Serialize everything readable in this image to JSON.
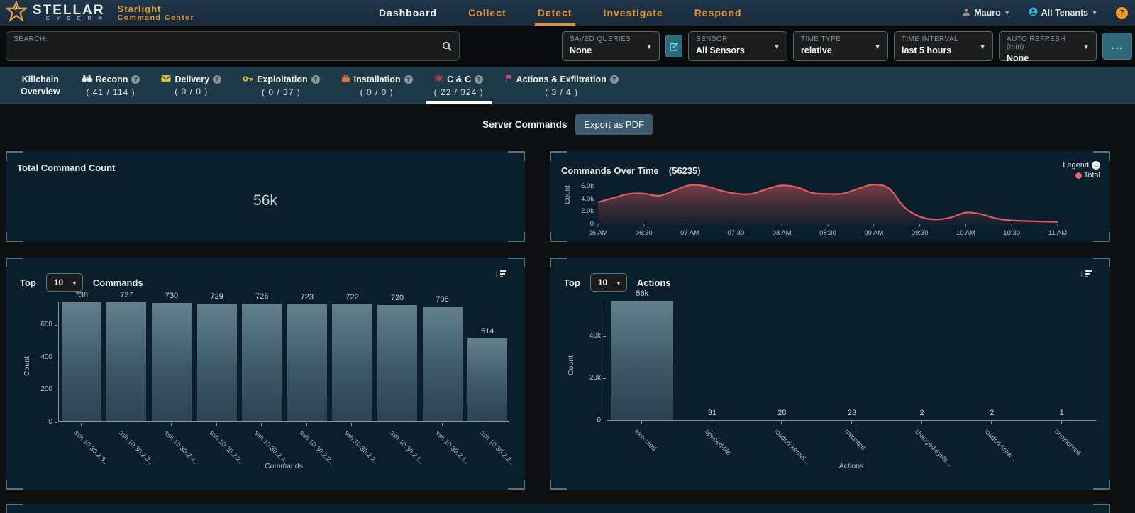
{
  "header": {
    "logo": {
      "brand": "STELLAR",
      "sub": "C Y B E R ®",
      "product_line1": "Starlight",
      "product_line2": "Command Center"
    },
    "nav": [
      {
        "label": "Dashboard",
        "style": "white"
      },
      {
        "label": "Collect"
      },
      {
        "label": "Detect",
        "active": true
      },
      {
        "label": "Investigate"
      },
      {
        "label": "Respond"
      }
    ],
    "user_label": "Mauro",
    "tenant_label": "All Tenants",
    "help_label": "?"
  },
  "filters": {
    "search_label": "SEARCH:",
    "dropdowns": [
      {
        "label": "SAVED QUERIES",
        "value": "None"
      },
      {
        "label": "SENSOR",
        "value": "All Sensors"
      },
      {
        "label": "TIME TYPE",
        "value": "relative"
      },
      {
        "label": "TIME INTERVAL",
        "value": "last 5 hours"
      },
      {
        "label": "AUTO REFRESH (min)",
        "value": "None"
      }
    ],
    "more_label": "..."
  },
  "killchain": {
    "tabs": [
      {
        "label": "Killchain",
        "label2": "Overview"
      },
      {
        "label": "Reconn",
        "count": "( 41 / 114 )",
        "icon": "binoculars-icon",
        "help": true
      },
      {
        "label": "Delivery",
        "count": "( 0 / 0 )",
        "icon": "envelope-icon",
        "help": true
      },
      {
        "label": "Exploitation",
        "count": "( 0 / 37 )",
        "icon": "key-icon",
        "help": true
      },
      {
        "label": "Installation",
        "count": "( 0 / 0 )",
        "icon": "toolbox-icon",
        "help": true
      },
      {
        "label": "C & C",
        "count": "( 22 / 324 )",
        "icon": "spider-icon",
        "help": true,
        "active": true
      },
      {
        "label": "Actions & Exfiltration",
        "count": "( 3 / 4 )",
        "icon": "flag-icon",
        "help": true
      }
    ]
  },
  "toolbar": {
    "title": "Server Commands",
    "export_label": "Export as PDF"
  },
  "panels": {
    "total": {
      "title": "Total Command Count",
      "value": "56k"
    },
    "over_time": {
      "title": "Commands Over Time",
      "count": "(56235)",
      "legend_label": "Legend",
      "legend_series": "Total",
      "ylabel": "Count"
    },
    "top_commands": {
      "top_label": "Top",
      "top_value": "10",
      "title": "Commands"
    },
    "top_actions": {
      "top_label": "Top",
      "top_value": "10",
      "title": "Actions"
    }
  },
  "chart_data": [
    {
      "id": "commands_over_time",
      "type": "area",
      "title": "Commands Over Time",
      "total": 56235,
      "series": [
        {
          "name": "Total",
          "color": "#e25b64",
          "values": [
            3400,
            4100,
            4750,
            4800,
            4450,
            5300,
            6150,
            6000,
            5300,
            4800,
            4750,
            5500,
            6100,
            5800,
            4900,
            4750,
            4800,
            5600,
            6250,
            5600,
            2600,
            1100,
            650,
            950,
            1750,
            1500,
            800,
            500,
            400,
            320,
            260
          ]
        }
      ],
      "x_ticks": [
        "06 AM",
        "06:30",
        "07 AM",
        "07:30",
        "08 AM",
        "08:30",
        "09 AM",
        "09:30",
        "10 AM",
        "10:30",
        "11 AM"
      ],
      "y_ticks": [
        {
          "value": 0,
          "label": "0"
        },
        {
          "value": 2000,
          "label": "2.0k"
        },
        {
          "value": 4000,
          "label": "4.0k"
        },
        {
          "value": 6000,
          "label": "6.0k"
        }
      ],
      "ylim": [
        0,
        6600
      ],
      "xlabel": "",
      "ylabel": "Count",
      "grid": false,
      "legend_position": "top-right"
    },
    {
      "id": "top_commands",
      "type": "bar",
      "categories": [
        "ssh 10.30.2.3...",
        "ssh 10.30.2.3...",
        "ssh 10.30.2.4...",
        "ssh 10.30.2.2...",
        "ssh 10.30.2.4...",
        "ssh 10.30.2.2...",
        "ssh 10.30.2.2...",
        "ssh 10.30.2.1...",
        "ssh 10.30.2.1...",
        "ssh 10.30.2.2..."
      ],
      "values": [
        738,
        737,
        730,
        729,
        728,
        723,
        722,
        720,
        708,
        514
      ],
      "value_labels": [
        "738",
        "737",
        "730",
        "729",
        "728",
        "723",
        "722",
        "720",
        "708",
        "514"
      ],
      "y_ticks": [
        {
          "value": 0,
          "label": "0"
        },
        {
          "value": 200,
          "label": "200"
        },
        {
          "value": 400,
          "label": "400"
        },
        {
          "value": 600,
          "label": "600"
        }
      ],
      "ylim": [
        0,
        745
      ],
      "xlabel": "Commands",
      "ylabel": "Count",
      "grid": false
    },
    {
      "id": "top_actions",
      "type": "bar",
      "categories": [
        "executed",
        "opened-file",
        "loaded-kernel...",
        "mounted",
        "changed-syste...",
        "loaded-firew...",
        "unmounted"
      ],
      "values": [
        56235,
        31,
        28,
        23,
        2,
        2,
        1
      ],
      "value_labels": [
        "56k",
        "31",
        "28",
        "23",
        "2",
        "2",
        "1"
      ],
      "y_ticks": [
        {
          "value": 0,
          "label": "0"
        },
        {
          "value": 20000,
          "label": "20k"
        },
        {
          "value": 40000,
          "label": "40k"
        }
      ],
      "ylim": [
        0,
        56235
      ],
      "xlabel": "Actions",
      "ylabel": "Count",
      "grid": false
    }
  ],
  "colors": {
    "accent_orange": "#ef9b2d",
    "nav_orange": "#e8922f",
    "line_red": "#e25b64",
    "legend_dot": "#ef6471",
    "teal_button": "#2e6879",
    "panel_bg": "#0a1e2b",
    "killchain_bg": "#1e3a49"
  }
}
